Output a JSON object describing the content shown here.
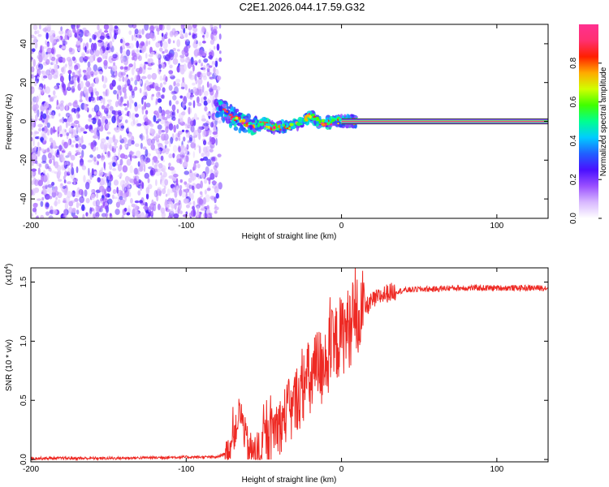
{
  "title": "C2E1.2026.044.17.59.G32",
  "chart_data": [
    {
      "type": "heatmap",
      "name": "spectrogram",
      "xlabel": "Height of straight line (km)",
      "ylabel": "Frequency (Hz)",
      "xlim": [
        -200,
        133
      ],
      "ylim": [
        -50,
        50
      ],
      "xticks": [
        -200,
        -100,
        0,
        100
      ],
      "yticks": [
        -40,
        -20,
        0,
        20,
        40
      ],
      "noise_region_x": [
        -200,
        -78
      ],
      "signal_trace": {
        "x": [
          -80,
          -75,
          -70,
          -65,
          -60,
          -55,
          -50,
          -45,
          -40,
          -35,
          -30,
          -25,
          -20,
          -15,
          -10,
          -5,
          0,
          10,
          20,
          133
        ],
        "y": [
          8,
          5,
          2,
          0,
          -2,
          -2,
          -1,
          -3,
          -3,
          -3,
          -2,
          0,
          3,
          0,
          -1,
          0,
          0,
          0,
          0,
          0
        ]
      },
      "colorbar": {
        "label": "Normalized spectral amplitude",
        "range": [
          0,
          1
        ],
        "ticks": [
          0.0,
          0.2,
          0.4,
          0.6,
          0.8
        ],
        "tick_labels": [
          "0.0",
          "0.2",
          "0.4",
          "0.6",
          "0.8"
        ],
        "colors": [
          "#ffffff",
          "#d8b8ff",
          "#9a50ff",
          "#4a10ff",
          "#2060ff",
          "#00ccff",
          "#00ff90",
          "#40ff00",
          "#d0ff00",
          "#ffaa00",
          "#ff2000",
          "#ff3070",
          "#ff3090"
        ]
      }
    },
    {
      "type": "line",
      "name": "snr",
      "xlabel": "Height of straight line (km)",
      "ylabel": "SNR (10 * v/v)",
      "y_multiplier": "(x10",
      "y_multiplier_exp": "4",
      "y_multiplier_close": ")",
      "xlim": [
        -200,
        133
      ],
      "ylim": [
        -0.02,
        1.62
      ],
      "xticks": [
        -200,
        -100,
        0,
        100
      ],
      "yticks": [
        0.0,
        0.5,
        1.0,
        1.5
      ],
      "ytick_labels": [
        "0.0",
        "0.5",
        "1.0",
        "1.5"
      ],
      "color": "#ee2a24",
      "series": [
        {
          "name": "SNR",
          "x": [
            -200,
            -150,
            -100,
            -80,
            -75,
            -72,
            -68,
            -66,
            -64,
            -62,
            -60,
            -58,
            -55,
            -52,
            -50,
            -47,
            -45,
            -42,
            -40,
            -37,
            -35,
            -32,
            -30,
            -28,
            -26,
            -24,
            -22,
            -20,
            -18,
            -17,
            -15,
            -13,
            -11,
            -9,
            -7,
            -5,
            -3,
            0,
            5,
            10,
            15,
            20,
            25,
            30,
            40,
            50,
            60,
            70,
            80,
            90,
            100,
            110,
            120,
            133
          ],
          "y": [
            0.01,
            0.01,
            0.02,
            0.02,
            0.05,
            0.1,
            0.25,
            0.4,
            0.35,
            0.2,
            0.1,
            0.06,
            0.04,
            0.07,
            0.18,
            0.15,
            0.22,
            0.3,
            0.28,
            0.35,
            0.42,
            0.4,
            0.48,
            0.55,
            0.52,
            0.65,
            0.7,
            0.62,
            0.75,
            0.7,
            0.8,
            0.76,
            0.9,
            0.82,
            0.95,
            0.9,
            1.0,
            1.05,
            1.12,
            1.2,
            1.28,
            1.34,
            1.38,
            1.41,
            1.43,
            1.44,
            1.44,
            1.45,
            1.45,
            1.45,
            1.45,
            1.45,
            1.45,
            1.45
          ]
        }
      ]
    }
  ]
}
